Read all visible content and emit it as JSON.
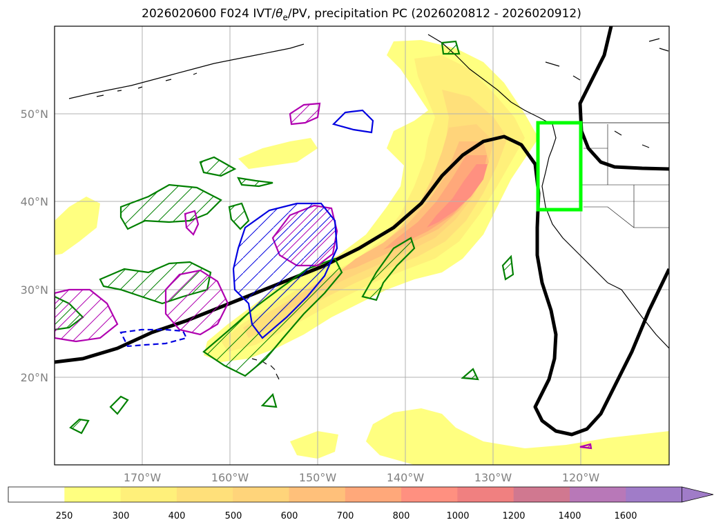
{
  "title": {
    "pre": "2026020600 F024 IVT/",
    "theta": "θ",
    "sub": "e",
    "post": "/PV, precipitation PC (2026020812 - 2026020912)"
  },
  "axes": {
    "lon_ticks": [
      "170°W",
      "160°W",
      "150°W",
      "140°W",
      "130°W",
      "120°W"
    ],
    "lat_ticks": [
      "20°N",
      "30°N",
      "40°N",
      "50°N"
    ]
  },
  "colorbar": {
    "ticks": [
      "250",
      "300",
      "400",
      "500",
      "600",
      "700",
      "800",
      "1000",
      "1200",
      "1400",
      "1600"
    ],
    "colors": [
      "#ffffff",
      "#ffff80",
      "#fff07a",
      "#ffe07a",
      "#ffd47a",
      "#ffc07a",
      "#ffa87a",
      "#ff9080",
      "#f08080",
      "#d07890",
      "#b878b8",
      "#a07cc8"
    ]
  },
  "overlay_colors": {
    "ivt_fill": "#ffe07a",
    "theta_e_contour": "#000000",
    "pv_positive": "#008000",
    "pv_magenta": "#b000b0",
    "pv_negative": "#0000e0",
    "target_box": "#00ff00"
  }
}
